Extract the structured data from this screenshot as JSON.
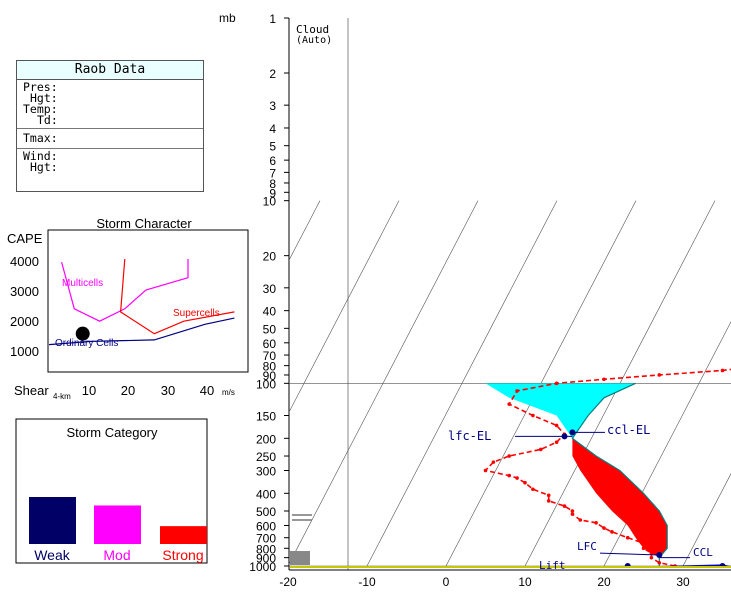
{
  "raob": {
    "title": "Raob Data",
    "fields": [
      "Pres:",
      "Hgt:",
      "Temp:",
      "Td:",
      "Tmax:",
      "Wind:",
      "Hgt:"
    ]
  },
  "storm_character": {
    "title": "Storm Character",
    "ylabel": "CAPE",
    "yticks": [
      "4000",
      "3000",
      "2000",
      "1000"
    ],
    "xlabel": "Shear",
    "xlabel_sub": "4-km",
    "xticks": [
      "10",
      "20",
      "30",
      "40"
    ],
    "xunit": "m/s",
    "regions": [
      "Multicells",
      "Supercells",
      "Ordinary Cells"
    ],
    "colors": {
      "multicells": "#ff00ff",
      "supercells": "#ff0000",
      "ordinary": "#000080"
    }
  },
  "storm_category": {
    "title": "Storm Category",
    "labels": [
      "Weak",
      "Mod",
      "Strong"
    ],
    "colors": [
      "#000066",
      "#ff00ff",
      "#ff0000"
    ]
  },
  "skewt": {
    "unit_label": "mb",
    "top_label": "Cloud",
    "top_sub": "(Auto)",
    "pressure_labels": [
      "1",
      "2",
      "3",
      "4",
      "5",
      "6",
      "7",
      "8",
      "9",
      "10",
      "20",
      "30",
      "40",
      "50",
      "60",
      "70",
      "80",
      "90",
      "100",
      "150",
      "200",
      "250",
      "300",
      "400",
      "500",
      "600",
      "700",
      "800",
      "900",
      "1000"
    ],
    "x_labels": [
      "-20",
      "-10",
      "0",
      "10",
      "20",
      "30"
    ],
    "level_labels": [
      "lfc-EL",
      "ccl-EL",
      "LFC",
      "CCL",
      "Lift"
    ]
  },
  "chart_data": [
    {
      "type": "line",
      "title": "Storm Character",
      "xlabel": "Shear 4-km",
      "ylabel": "CAPE",
      "xlim": [
        0,
        47
      ],
      "ylim": [
        0,
        4500
      ],
      "series": [
        {
          "name": "Multicells",
          "points": [
            [
              3,
              3500
            ],
            [
              6,
              2000
            ],
            [
              12,
              1600
            ],
            [
              18,
              2000
            ],
            [
              23,
              2600
            ],
            [
              33,
              3000
            ],
            [
              33,
              3600
            ]
          ]
        },
        {
          "name": "Supercells",
          "points": [
            [
              18,
              3600
            ],
            [
              17,
              1900
            ],
            [
              25,
              1200
            ],
            [
              32,
              1600
            ],
            [
              44,
              1900
            ]
          ]
        },
        {
          "name": "Ordinary Cells",
          "points": [
            [
              0,
              850
            ],
            [
              10,
              950
            ],
            [
              25,
              1000
            ],
            [
              37,
              1500
            ],
            [
              44,
              1700
            ]
          ]
        }
      ],
      "marker": {
        "x": 8,
        "y": 1200
      }
    },
    {
      "type": "bar",
      "title": "Storm Category",
      "categories": [
        "Weak",
        "Mod",
        "Strong"
      ],
      "values": [
        1.0,
        0.82,
        0.38
      ]
    },
    {
      "type": "line",
      "subtype": "skew-t",
      "xlabel": "",
      "ylabel": "mb",
      "xlim": [
        -20,
        35
      ],
      "ylim": [
        1000,
        1
      ],
      "series": [
        {
          "name": "",
          "style": "dashed",
          "color": "#ff0000",
          "points": [
            [
              29,
              1000
            ],
            [
              27,
              960
            ],
            [
              26,
              900
            ],
            [
              26,
              850
            ],
            [
              25,
              800
            ],
            [
              25,
              750
            ],
            [
              23,
              700
            ],
            [
              21,
              650
            ],
            [
              20,
              620
            ],
            [
              19,
              580
            ],
            [
              17,
              560
            ],
            [
              16,
              520
            ],
            [
              16,
              500
            ],
            [
              15,
              470
            ],
            [
              13,
              440
            ],
            [
              13,
              410
            ],
            [
              11,
              380
            ],
            [
              10,
              350
            ],
            [
              9,
              330
            ],
            [
              8,
              320
            ],
            [
              5,
              300
            ],
            [
              6,
              270
            ],
            [
              8,
              250
            ],
            [
              12,
              230
            ],
            [
              14,
              210
            ],
            [
              15,
              190
            ],
            [
              14,
              170
            ],
            [
              11,
              150
            ],
            [
              8,
              130
            ],
            [
              9,
              110
            ],
            [
              14,
              100
            ],
            [
              20,
              95
            ],
            [
              27,
              90
            ],
            [
              35,
              85
            ],
            [
              40,
              80
            ],
            [
              48,
              72
            ],
            [
              54,
              68
            ],
            [
              50,
              60
            ],
            [
              55,
              55
            ],
            [
              60,
              50
            ]
          ]
        },
        {
          "name": "",
          "style": "solid",
          "color": "#ff0000",
          "points": [
            [
              27,
              1000
            ],
            [
              27,
              900
            ],
            [
              28,
              800
            ],
            [
              28,
              700
            ],
            [
              28,
              600
            ],
            [
              27,
              500
            ],
            [
              25,
              400
            ],
            [
              22,
              300
            ],
            [
              19,
              250
            ],
            [
              16,
              200
            ],
            [
              18,
              150
            ],
            [
              20,
              120
            ],
            [
              24,
              100
            ]
          ]
        }
      ]
    }
  ]
}
